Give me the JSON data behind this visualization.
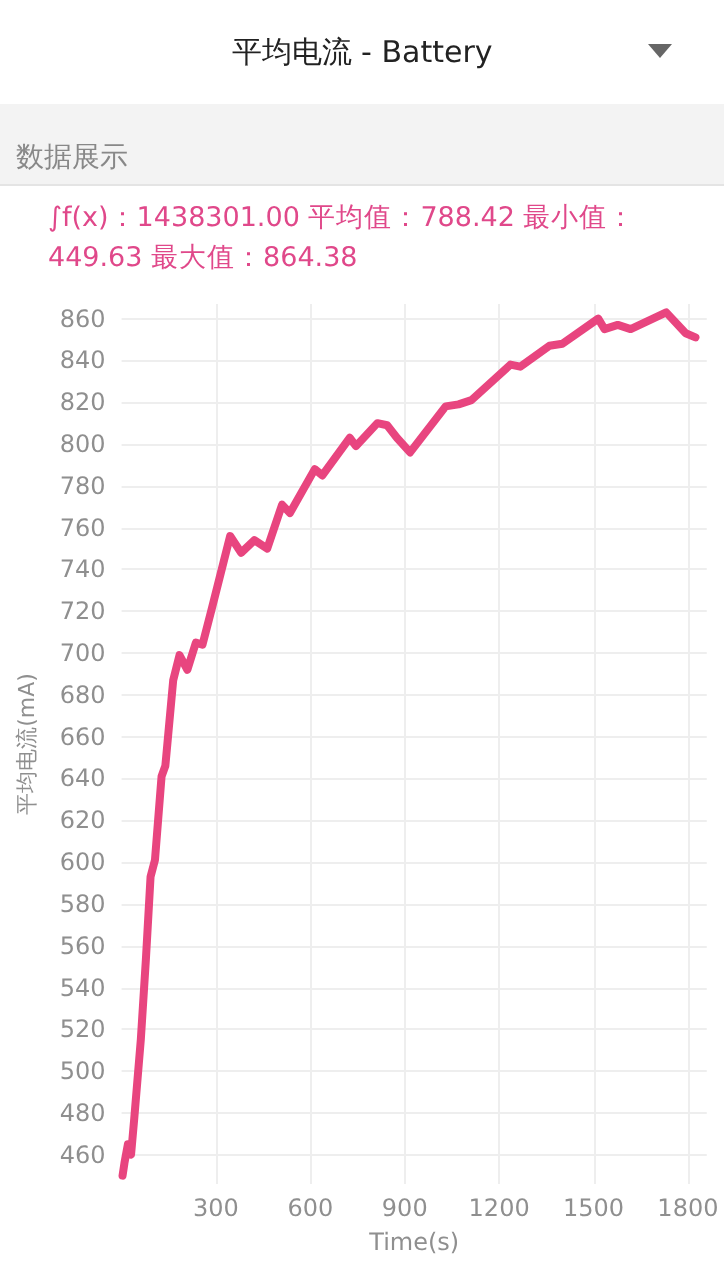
{
  "chart_data": {
    "type": "line",
    "title": "平均电流 - Battery",
    "subtitle": "数据展示",
    "annotations": [
      "∫f(x)：1438301.00  平均值：788.42  最小值：449.63  最大值：864.38"
    ],
    "xlabel": "Time(s)",
    "ylabel": "平均电流(mA)",
    "x": [
      3,
      9,
      20,
      30,
      40,
      61,
      77,
      92,
      106,
      127,
      139,
      164,
      184,
      209,
      236,
      257,
      288,
      345,
      380,
      422,
      463,
      510,
      535,
      614,
      638,
      725,
      745,
      813,
      844,
      875,
      917,
      1030,
      1071,
      1112,
      1236,
      1267,
      1360,
      1401,
      1515,
      1535,
      1577,
      1618,
      1731,
      1793,
      1824
    ],
    "series": [
      {
        "color": "#e8457f",
        "values": [
          450,
          456,
          465,
          460,
          477,
          515,
          553,
          593,
          601,
          641,
          646,
          687,
          699,
          692,
          705,
          704,
          722,
          756,
          748,
          754,
          750,
          771,
          767,
          788,
          785,
          803,
          799,
          810,
          809,
          803,
          796,
          818,
          819,
          821,
          838,
          837,
          847,
          848,
          860,
          855,
          857,
          855,
          863,
          853,
          851
        ]
      }
    ],
    "xlim": [
      0,
      1860
    ],
    "xticks": [
      300,
      600,
      900,
      1200,
      1500,
      1800
    ],
    "ylim": [
      446,
      867
    ],
    "yticks": [
      460,
      480,
      500,
      520,
      540,
      560,
      580,
      600,
      620,
      640,
      660,
      680,
      700,
      720,
      740,
      760,
      780,
      800,
      820,
      840,
      860
    ],
    "grid": true,
    "marker": "none",
    "line_style": "solid"
  }
}
